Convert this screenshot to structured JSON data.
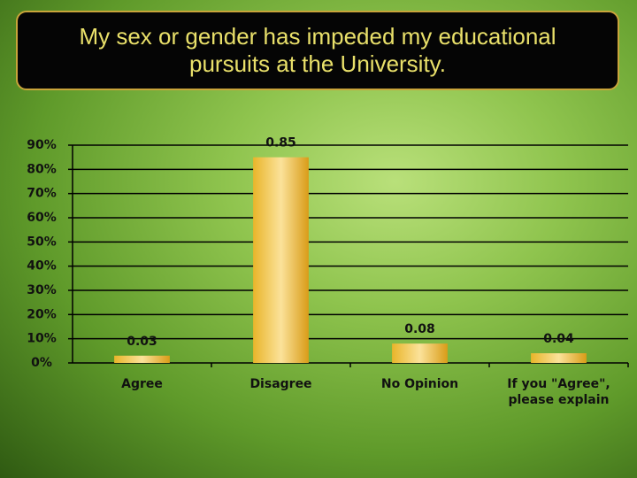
{
  "chart_data": {
    "type": "bar",
    "title": "My sex or gender has impeded my educational pursuits at the University.",
    "categories": [
      "Agree",
      "Disagree",
      "No Opinion",
      "If you \"Agree\", please explain"
    ],
    "values": [
      3,
      85,
      8,
      4
    ],
    "value_labels": [
      "0.03",
      "0.85",
      "0.08",
      "0.04"
    ],
    "color": "#f0c04a",
    "ylim": [
      0,
      90
    ],
    "yticks": [
      {
        "value": 0,
        "label": "0%"
      },
      {
        "value": 10,
        "label": "10%"
      },
      {
        "value": 20,
        "label": "20%"
      },
      {
        "value": 30,
        "label": "30%"
      },
      {
        "value": 40,
        "label": "40%"
      },
      {
        "value": 50,
        "label": "50%"
      },
      {
        "value": 60,
        "label": "60%"
      },
      {
        "value": 70,
        "label": "70%"
      },
      {
        "value": 80,
        "label": "80%"
      },
      {
        "value": 90,
        "label": "90%"
      }
    ],
    "grid": true
  }
}
